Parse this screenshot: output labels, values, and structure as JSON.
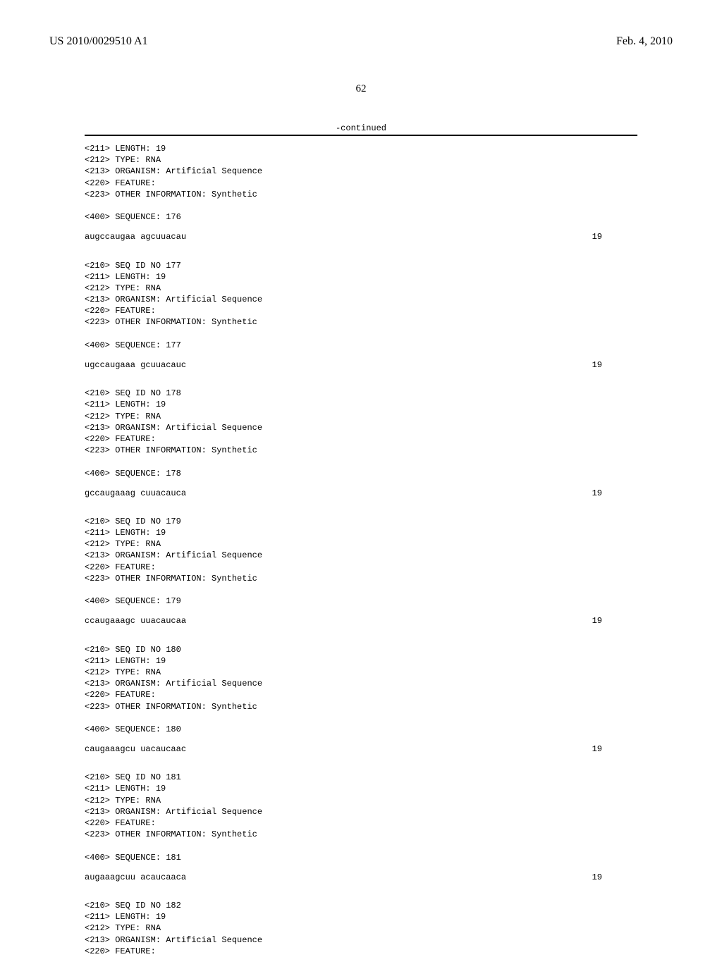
{
  "header": {
    "left": "US 2010/0029510 A1",
    "right": "Feb. 4, 2010"
  },
  "pageNumber": "62",
  "continued": "-continued",
  "sequences": [
    {
      "header": "<211> LENGTH: 19\n<212> TYPE: RNA\n<213> ORGANISM: Artificial Sequence\n<220> FEATURE:\n<223> OTHER INFORMATION: Synthetic\n\n<400> SEQUENCE: 176",
      "sequence": "augccaugaa agcuuacau",
      "length": "19"
    },
    {
      "header": "<210> SEQ ID NO 177\n<211> LENGTH: 19\n<212> TYPE: RNA\n<213> ORGANISM: Artificial Sequence\n<220> FEATURE:\n<223> OTHER INFORMATION: Synthetic\n\n<400> SEQUENCE: 177",
      "sequence": "ugccaugaaa gcuuacauc",
      "length": "19"
    },
    {
      "header": "<210> SEQ ID NO 178\n<211> LENGTH: 19\n<212> TYPE: RNA\n<213> ORGANISM: Artificial Sequence\n<220> FEATURE:\n<223> OTHER INFORMATION: Synthetic\n\n<400> SEQUENCE: 178",
      "sequence": "gccaugaaag cuuacauca",
      "length": "19"
    },
    {
      "header": "<210> SEQ ID NO 179\n<211> LENGTH: 19\n<212> TYPE: RNA\n<213> ORGANISM: Artificial Sequence\n<220> FEATURE:\n<223> OTHER INFORMATION: Synthetic\n\n<400> SEQUENCE: 179",
      "sequence": "ccaugaaagc uuacaucaa",
      "length": "19"
    },
    {
      "header": "<210> SEQ ID NO 180\n<211> LENGTH: 19\n<212> TYPE: RNA\n<213> ORGANISM: Artificial Sequence\n<220> FEATURE:\n<223> OTHER INFORMATION: Synthetic\n\n<400> SEQUENCE: 180",
      "sequence": "caugaaagcu uacaucaac",
      "length": "19"
    },
    {
      "header": "<210> SEQ ID NO 181\n<211> LENGTH: 19\n<212> TYPE: RNA\n<213> ORGANISM: Artificial Sequence\n<220> FEATURE:\n<223> OTHER INFORMATION: Synthetic\n\n<400> SEQUENCE: 181",
      "sequence": "augaaagcuu acaucaaca",
      "length": "19"
    },
    {
      "header": "<210> SEQ ID NO 182\n<211> LENGTH: 19\n<212> TYPE: RNA\n<213> ORGANISM: Artificial Sequence\n<220> FEATURE:",
      "sequence": null,
      "length": null
    }
  ]
}
